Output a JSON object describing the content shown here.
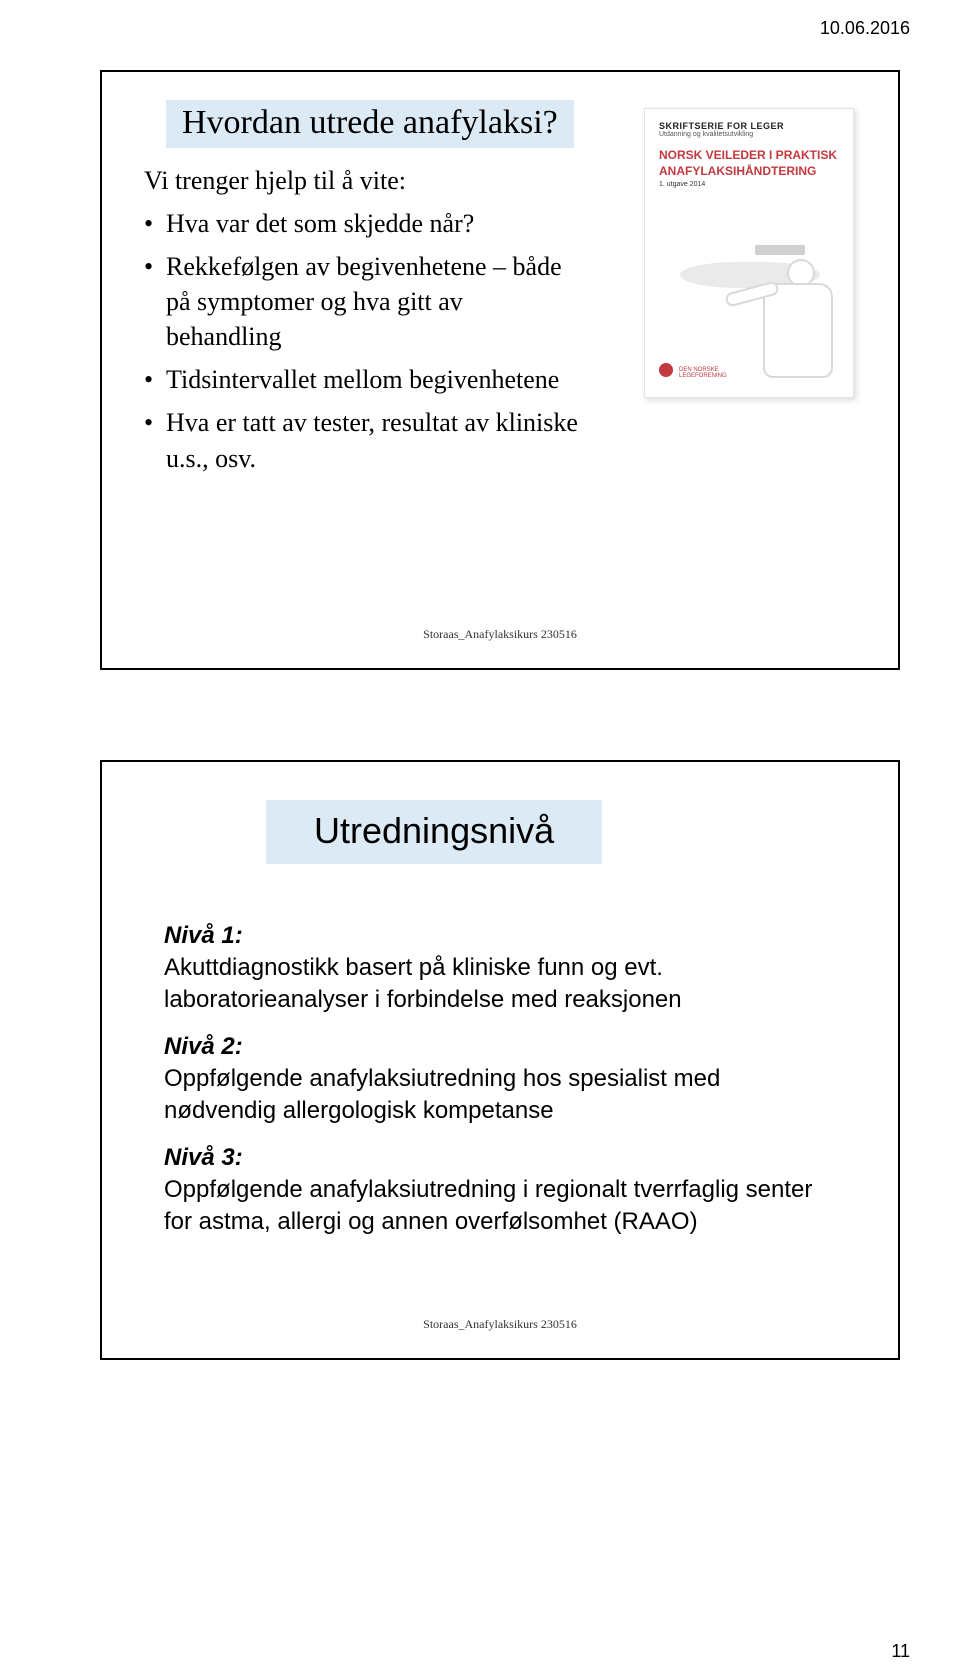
{
  "header_date": "10.06.2016",
  "page_number": "11",
  "slide1": {
    "title": "Hvordan utrede anafylaksi?",
    "subheading": "Vi trenger hjelp til å vite:",
    "bullets": [
      "Hva var det som skjedde når?",
      "Rekkefølgen av begivenhetene – både på symptomer og hva gitt av behandling",
      "Tidsintervallet mellom begivenhetene",
      "Hva er tatt av tester, resultat av kliniske u.s., osv."
    ],
    "footer": "Storaas_Anafylaksikurs 230516",
    "cover": {
      "series_label": "SKRIFTSERIE FOR LEGER",
      "series_sub": "Utdanning og kvalitetsutvikling",
      "title": "NORSK VEILEDER I PRAKTISK ANAFYLAKSIHÅNDTERING",
      "edition": "1. utgave 2014",
      "logo_text1": "DEN NORSKE",
      "logo_text2": "LEGEFORENING"
    }
  },
  "slide2": {
    "title": "Utredningsnivå",
    "levels": [
      {
        "label": "Nivå 1:",
        "text": "Akuttdiagnostikk basert på kliniske funn og evt. laboratorieanalyser i forbindelse med reaksjonen"
      },
      {
        "label": "Nivå 2:",
        "text": "Oppfølgende anafylaksiutredning hos spesialist med nødvendig allergologisk kompetanse"
      },
      {
        "label": "Nivå 3:",
        "text": "Oppfølgende anafylaksiutredning i regionalt tverrfaglig senter for astma, allergi og annen overfølsomhet (RAAO)"
      }
    ],
    "footer": "Storaas_Anafylaksikurs 230516"
  },
  "colors": {
    "title_bg": "#dbeaf4",
    "cover_accent": "#c23a40"
  }
}
